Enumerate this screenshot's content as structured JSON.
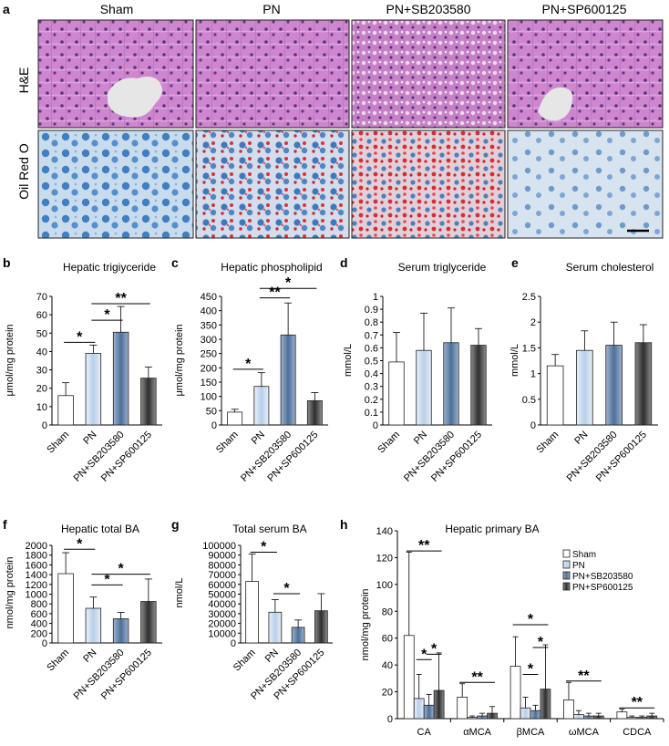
{
  "panel_a": {
    "letter": "a",
    "columns": [
      "Sham",
      "PN",
      "PN+SB203580",
      "PN+SP600125"
    ],
    "rows": [
      "H&E",
      "Oil Red O"
    ]
  },
  "colors": {
    "Sham": "#ffffff",
    "PN": "#b9cfe9",
    "PN+SB203580": "#5f7fa8",
    "PN+SP600125": "#3c3c3c",
    "he_tissue": "#c77ec9",
    "oro_tissue": "#8db3d8",
    "oro_lipid": "#d4363a"
  },
  "chart_data": [
    {
      "id": "b",
      "letter": "b",
      "type": "bar",
      "title": "Hepatic trigiyceride",
      "ylabel": "μmol/mg protein",
      "categories": [
        "Sham",
        "PN",
        "PN+SB203580",
        "PN+SP600125"
      ],
      "values": [
        16,
        39,
        50.5,
        25.5
      ],
      "errors": [
        7,
        4.5,
        14,
        6
      ],
      "ylim": [
        0,
        70
      ],
      "yticks": [
        "0",
        "10",
        "20",
        "30",
        "40",
        "50",
        "60",
        "70"
      ],
      "significance": [
        {
          "from": 0,
          "to": 1,
          "y": 45,
          "label": "*"
        },
        {
          "from": 1,
          "to": 2,
          "y": 57,
          "label": "*"
        },
        {
          "from": 1,
          "to": 3,
          "y": 66,
          "label": "**"
        }
      ]
    },
    {
      "id": "c",
      "letter": "c",
      "type": "bar",
      "title": "Hepatic phospholipid",
      "ylabel": "μmol/mg protein",
      "categories": [
        "Sham",
        "PN",
        "PN+SB203580",
        "PN+SP600125"
      ],
      "values": [
        45,
        135,
        315,
        85
      ],
      "errors": [
        10,
        48,
        112,
        28
      ],
      "ylim": [
        0,
        450
      ],
      "yticks": [
        "0",
        "50",
        "100",
        "150",
        "200",
        "250",
        "300",
        "350",
        "400",
        "450"
      ],
      "significance": [
        {
          "from": 0,
          "to": 1,
          "y": 195,
          "label": "*"
        },
        {
          "from": 1,
          "to": 2,
          "y": 445,
          "label": "**"
        },
        {
          "from": 1,
          "to": 3,
          "y": 478,
          "label": "*"
        }
      ]
    },
    {
      "id": "d",
      "letter": "d",
      "type": "bar",
      "title": "Serum triglyceride",
      "ylabel": "mmol/L",
      "categories": [
        "Sham",
        "PN",
        "PN+SB203580",
        "PN+SP600125"
      ],
      "values": [
        0.49,
        0.58,
        0.64,
        0.62
      ],
      "errors": [
        0.23,
        0.29,
        0.27,
        0.13
      ],
      "ylim": [
        0,
        1
      ],
      "yticks": [
        "0",
        "0.1",
        "0.2",
        "0.3",
        "0.4",
        "0.5",
        "0.6",
        "0.7",
        "0.8",
        "0.9",
        "1"
      ],
      "significance": []
    },
    {
      "id": "e",
      "letter": "e",
      "type": "bar",
      "title": "Serum cholesterol",
      "ylabel": "mmol/L",
      "categories": [
        "Sham",
        "PN",
        "PN+SB203580",
        "PN+SP600125"
      ],
      "values": [
        1.15,
        1.45,
        1.55,
        1.6
      ],
      "errors": [
        0.22,
        0.38,
        0.45,
        0.35
      ],
      "ylim": [
        0,
        2.5
      ],
      "yticks": [
        "0",
        "0.5",
        "1",
        "1.5",
        "2",
        "2.5"
      ],
      "significance": []
    },
    {
      "id": "f",
      "letter": "f",
      "type": "bar",
      "title": "Hepatic total BA",
      "ylabel": "nmol/mg protein",
      "categories": [
        "Sham",
        "PN",
        "PN+SB203580",
        "PN+SP600125"
      ],
      "values": [
        1420,
        710,
        495,
        850
      ],
      "errors": [
        430,
        230,
        130,
        460
      ],
      "ylim": [
        0,
        2000
      ],
      "yticks": [
        "0",
        "200",
        "400",
        "600",
        "800",
        "1000",
        "1200",
        "1400",
        "1600",
        "1800",
        "2000"
      ],
      "significance": [
        {
          "from": 0,
          "to": 1,
          "y": 1920,
          "label": "*"
        },
        {
          "from": 1,
          "to": 2,
          "y": 1190,
          "label": "*"
        },
        {
          "from": 1,
          "to": 3,
          "y": 1410,
          "label": "*"
        }
      ]
    },
    {
      "id": "g",
      "letter": "g",
      "type": "bar",
      "title": "Total serum BA",
      "ylabel": "nmol/L",
      "categories": [
        "Sham",
        "PN",
        "PN+SB203580",
        "PN+SP600125"
      ],
      "values": [
        63000,
        31500,
        16000,
        33000
      ],
      "errors": [
        28000,
        13000,
        7500,
        17500
      ],
      "ylim": [
        0,
        100000
      ],
      "yticks": [
        "0",
        "10000",
        "20000",
        "30000",
        "40000",
        "50000",
        "60000",
        "70000",
        "80000",
        "90000",
        "100000"
      ],
      "significance": [
        {
          "from": 0,
          "to": 1,
          "y": 93000,
          "label": "*"
        },
        {
          "from": 1,
          "to": 2,
          "y": 50500,
          "label": "*"
        }
      ]
    },
    {
      "id": "h",
      "letter": "h",
      "type": "bar",
      "title": "Hepatic primary BA",
      "ylabel": "nmol/mg protein",
      "categories": [
        "CA",
        "αMCA",
        "βMCA",
        "ωMCA",
        "CDCA"
      ],
      "series": [
        {
          "name": "Sham",
          "values": [
            62,
            16,
            39,
            14,
            5
          ],
          "errors": [
            62,
            10,
            22,
            13,
            2
          ]
        },
        {
          "name": "PN",
          "values": [
            15,
            1,
            8,
            3,
            1
          ],
          "errors": [
            18,
            1,
            8,
            3,
            1
          ]
        },
        {
          "name": "PN+SB203580",
          "values": [
            10,
            2,
            6,
            2,
            1
          ],
          "errors": [
            8,
            2,
            4,
            2,
            1
          ]
        },
        {
          "name": "PN+SP600125",
          "values": [
            21,
            4,
            22,
            2,
            2
          ],
          "errors": [
            28,
            5,
            33,
            2,
            2
          ]
        }
      ],
      "ylim": [
        0,
        140
      ],
      "yticks": [
        "0",
        "20",
        "40",
        "60",
        "80",
        "100",
        "120",
        "140"
      ],
      "legend": "top-right",
      "significance": [
        {
          "cat": 0,
          "from": 0,
          "to": 3,
          "y": 125,
          "label": "**"
        },
        {
          "cat": 0,
          "from": 1,
          "to": 2,
          "y": 44,
          "label": "*"
        },
        {
          "cat": 0,
          "from": 2,
          "to": 3,
          "y": 48,
          "label": "*"
        },
        {
          "cat": 1,
          "from": 0,
          "to": 3,
          "y": 27,
          "label": "**"
        },
        {
          "cat": 2,
          "from": 0,
          "to": 3,
          "y": 70,
          "label": "*"
        },
        {
          "cat": 2,
          "from": 2,
          "to": 3,
          "y": 53,
          "label": "*"
        },
        {
          "cat": 2,
          "from": 1,
          "to": 2,
          "y": 33,
          "label": "*"
        },
        {
          "cat": 3,
          "from": 0,
          "to": 3,
          "y": 28,
          "label": "**"
        },
        {
          "cat": 4,
          "from": 0,
          "to": 3,
          "y": 8,
          "label": "**"
        }
      ]
    }
  ]
}
